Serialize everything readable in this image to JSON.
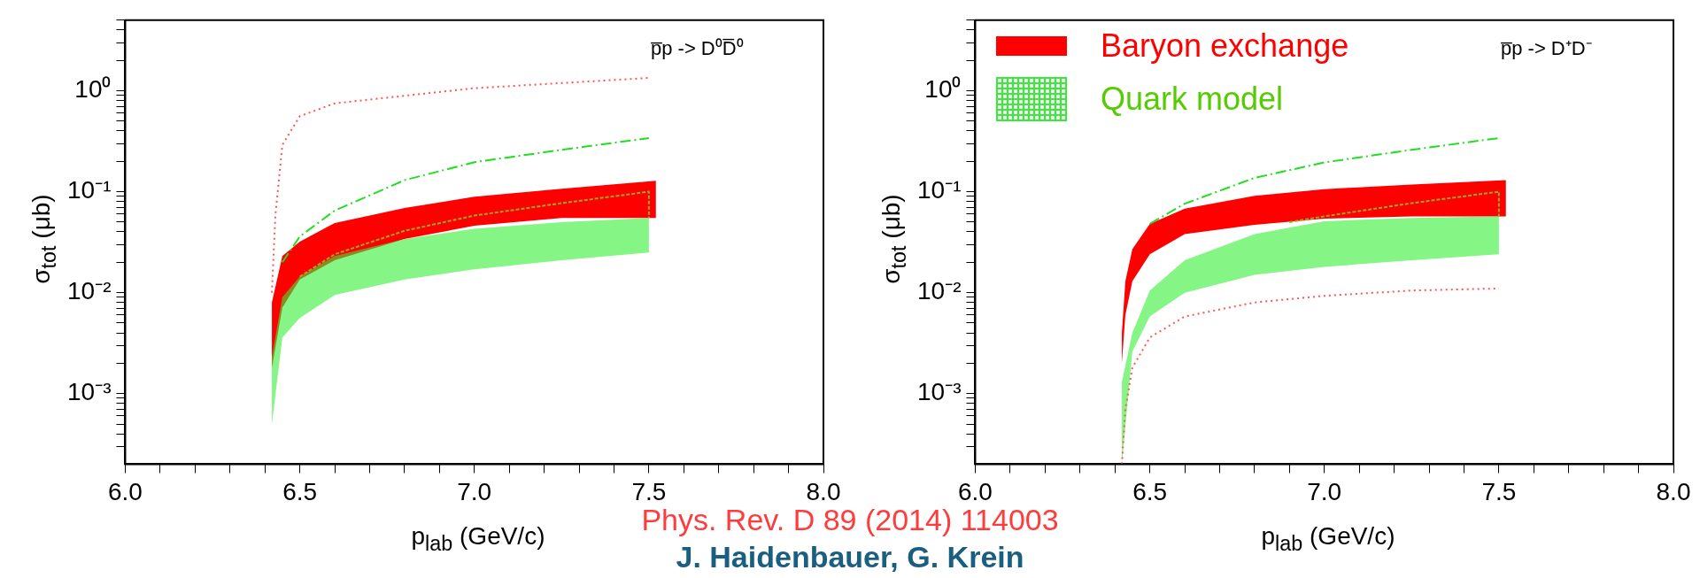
{
  "chart_data": [
    {
      "type": "line",
      "log": "y",
      "marker": "none",
      "grid": false,
      "legend": false,
      "xlabel": "p$_{lab}$ (GeV/c)",
      "ylabel": "σ$_{tot}$ (μb)",
      "xlim": [
        6,
        8
      ],
      "ylim": [
        0.0002,
        5
      ],
      "xticks": [
        {
          "value": 6,
          "label": "6.0"
        },
        {
          "value": 6.1,
          "label": null
        },
        {
          "value": 6.2,
          "label": null
        },
        {
          "value": 6.3,
          "label": null
        },
        {
          "value": 6.4,
          "label": null
        },
        {
          "value": 6.5,
          "label": "6.5"
        },
        {
          "value": 6.6,
          "label": null
        },
        {
          "value": 6.7,
          "label": null
        },
        {
          "value": 6.8,
          "label": null
        },
        {
          "value": 6.9,
          "label": null
        },
        {
          "value": 7,
          "label": "7.0"
        },
        {
          "value": 7.1,
          "label": null
        },
        {
          "value": 7.2,
          "label": null
        },
        {
          "value": 7.3,
          "label": null
        },
        {
          "value": 7.4,
          "label": null
        },
        {
          "value": 7.5,
          "label": "7.5"
        },
        {
          "value": 7.6,
          "label": null
        },
        {
          "value": 7.7,
          "label": null
        },
        {
          "value": 7.8,
          "label": null
        },
        {
          "value": 7.9,
          "label": null
        },
        {
          "value": 8,
          "label": "8.0"
        }
      ],
      "yticks": [
        {
          "value": 0.0003,
          "label": null
        },
        {
          "value": 0.0004,
          "label": null
        },
        {
          "value": 0.0005,
          "label": null
        },
        {
          "value": 0.0006,
          "label": null
        },
        {
          "value": 0.0007,
          "label": null
        },
        {
          "value": 0.0008,
          "label": null
        },
        {
          "value": 0.0009,
          "label": null
        },
        {
          "value": 0.001,
          "label": "10⁻³"
        },
        {
          "value": 0.002,
          "label": null
        },
        {
          "value": 0.003,
          "label": null
        },
        {
          "value": 0.004,
          "label": null
        },
        {
          "value": 0.005,
          "label": null
        },
        {
          "value": 0.006,
          "label": null
        },
        {
          "value": 0.007,
          "label": null
        },
        {
          "value": 0.008,
          "label": null
        },
        {
          "value": 0.009,
          "label": null
        },
        {
          "value": 0.01,
          "label": "10⁻²"
        },
        {
          "value": 0.02,
          "label": null
        },
        {
          "value": 0.03,
          "label": null
        },
        {
          "value": 0.04,
          "label": null
        },
        {
          "value": 0.05,
          "label": null
        },
        {
          "value": 0.06,
          "label": null
        },
        {
          "value": 0.07,
          "label": null
        },
        {
          "value": 0.08,
          "label": null
        },
        {
          "value": 0.09,
          "label": null
        },
        {
          "value": 0.1,
          "label": "10⁻¹"
        },
        {
          "value": 0.2,
          "label": null
        },
        {
          "value": 0.3,
          "label": null
        },
        {
          "value": 0.4,
          "label": null
        },
        {
          "value": 0.5,
          "label": null
        },
        {
          "value": 0.6,
          "label": null
        },
        {
          "value": 0.7,
          "label": null
        },
        {
          "value": 0.8,
          "label": null
        },
        {
          "value": 0.9,
          "label": null
        },
        {
          "value": 1,
          "label": "10⁰"
        },
        {
          "value": 2,
          "label": null
        },
        {
          "value": 3,
          "label": null
        },
        {
          "value": 4,
          "label": null
        },
        {
          "value": 5,
          "label": null
        }
      ],
      "annotations": [
        "p̅p -> D⁰D̅⁰",
        "Phys. Rev. D 89 (2014) 114003",
        "J. Haidenbauer, G. Krein"
      ],
      "series": [
        {
          "type": "area",
          "color": "#ff0000",
          "x": [
            6.42,
            6.45,
            6.5,
            6.6,
            6.8,
            7.0,
            7.25,
            7.52
          ],
          "lower": [
            0.0018,
            0.0071,
            0.0135,
            0.021,
            0.034,
            0.046,
            0.055,
            0.055
          ],
          "upper": [
            0.008,
            0.023,
            0.032,
            0.049,
            0.069,
            0.089,
            0.107,
            0.128
          ],
          "values": [
            null,
            null,
            null,
            null,
            null,
            null,
            null,
            null
          ]
        },
        {
          "type": "area",
          "color": "#33ee33",
          "x": [
            6.42,
            6.45,
            6.5,
            6.6,
            6.8,
            7.0,
            7.25,
            7.5
          ],
          "lower": [
            0.0005,
            0.0036,
            0.0056,
            0.0095,
            0.0135,
            0.017,
            0.021,
            0.025
          ],
          "upper": [
            0.0023,
            0.009,
            0.0144,
            0.023,
            0.034,
            0.043,
            0.05,
            0.055
          ],
          "values": [
            null,
            null,
            null,
            null,
            null,
            null,
            null,
            null
          ]
        },
        {
          "type": "line",
          "color": "#ff5555",
          "line_style": "dotted",
          "x": [
            6.42,
            6.43,
            6.45,
            6.5,
            6.6,
            7.0,
            7.5
          ],
          "values": [
            0.01,
            0.058,
            0.29,
            0.56,
            0.75,
            1.06,
            1.34
          ]
        },
        {
          "type": "line",
          "color": "#22dd22",
          "line_style": "dashdot",
          "x": [
            6.45,
            6.5,
            6.6,
            6.8,
            7.0,
            7.25,
            7.5
          ],
          "values": [
            0.02,
            0.036,
            0.065,
            0.13,
            0.196,
            0.26,
            0.34
          ]
        },
        {
          "type": "line",
          "color": "#99aa22",
          "line_style": "dashed",
          "x": [
            6.5,
            6.6,
            6.8,
            7.0,
            7.25,
            7.5,
            7.5
          ],
          "values": [
            0.0144,
            0.024,
            0.041,
            0.058,
            0.077,
            0.1,
            0.055
          ]
        }
      ]
    },
    {
      "type": "line",
      "log": "y",
      "marker": "none",
      "grid": false,
      "legend": "top left",
      "xlabel": "p$_{lab}$ (GeV/c)",
      "ylabel": "σ$_{tot}$ (μb)",
      "xlim": [
        6,
        8
      ],
      "ylim": [
        0.0002,
        5
      ],
      "xticks": [
        {
          "value": 6,
          "label": "6.0"
        },
        {
          "value": 6.1,
          "label": null
        },
        {
          "value": 6.2,
          "label": null
        },
        {
          "value": 6.3,
          "label": null
        },
        {
          "value": 6.4,
          "label": null
        },
        {
          "value": 6.5,
          "label": "6.5"
        },
        {
          "value": 6.6,
          "label": null
        },
        {
          "value": 6.7,
          "label": null
        },
        {
          "value": 6.8,
          "label": null
        },
        {
          "value": 6.9,
          "label": null
        },
        {
          "value": 7,
          "label": "7.0"
        },
        {
          "value": 7.1,
          "label": null
        },
        {
          "value": 7.2,
          "label": null
        },
        {
          "value": 7.3,
          "label": null
        },
        {
          "value": 7.4,
          "label": null
        },
        {
          "value": 7.5,
          "label": "7.5"
        },
        {
          "value": 7.6,
          "label": null
        },
        {
          "value": 7.7,
          "label": null
        },
        {
          "value": 7.8,
          "label": null
        },
        {
          "value": 7.9,
          "label": null
        },
        {
          "value": 8,
          "label": "8.0"
        }
      ],
      "yticks": [
        {
          "value": 0.0003,
          "label": null
        },
        {
          "value": 0.0004,
          "label": null
        },
        {
          "value": 0.0005,
          "label": null
        },
        {
          "value": 0.0006,
          "label": null
        },
        {
          "value": 0.0007,
          "label": null
        },
        {
          "value": 0.0008,
          "label": null
        },
        {
          "value": 0.0009,
          "label": null
        },
        {
          "value": 0.001,
          "label": "10⁻³"
        },
        {
          "value": 0.002,
          "label": null
        },
        {
          "value": 0.003,
          "label": null
        },
        {
          "value": 0.004,
          "label": null
        },
        {
          "value": 0.005,
          "label": null
        },
        {
          "value": 0.006,
          "label": null
        },
        {
          "value": 0.007,
          "label": null
        },
        {
          "value": 0.008,
          "label": null
        },
        {
          "value": 0.009,
          "label": null
        },
        {
          "value": 0.01,
          "label": "10⁻²"
        },
        {
          "value": 0.02,
          "label": null
        },
        {
          "value": 0.03,
          "label": null
        },
        {
          "value": 0.04,
          "label": null
        },
        {
          "value": 0.05,
          "label": null
        },
        {
          "value": 0.06,
          "label": null
        },
        {
          "value": 0.07,
          "label": null
        },
        {
          "value": 0.08,
          "label": null
        },
        {
          "value": 0.09,
          "label": null
        },
        {
          "value": 0.1,
          "label": "10⁻¹"
        },
        {
          "value": 0.2,
          "label": null
        },
        {
          "value": 0.3,
          "label": null
        },
        {
          "value": 0.4,
          "label": null
        },
        {
          "value": 0.5,
          "label": null
        },
        {
          "value": 0.6,
          "label": null
        },
        {
          "value": 0.7,
          "label": null
        },
        {
          "value": 0.8,
          "label": null
        },
        {
          "value": 0.9,
          "label": null
        },
        {
          "value": 1,
          "label": "10⁰"
        },
        {
          "value": 2,
          "label": null
        },
        {
          "value": 3,
          "label": null
        },
        {
          "value": 4,
          "label": null
        },
        {
          "value": 5,
          "label": null
        }
      ],
      "annotations": [
        "p̅p -> D⁺D⁻"
      ],
      "series": [
        {
          "name": "Baryon exchange",
          "type": "area",
          "color": "#ff0000",
          "x": [
            6.42,
            6.43,
            6.45,
            6.5,
            6.6,
            6.8,
            7.0,
            7.25,
            7.52
          ],
          "lower": [
            0.002,
            0.006,
            0.013,
            0.024,
            0.038,
            0.047,
            0.054,
            0.057,
            0.057
          ],
          "upper": [
            0.004,
            0.013,
            0.027,
            0.048,
            0.068,
            0.091,
            0.106,
            0.118,
            0.13
          ],
          "values": [
            null,
            null,
            null,
            null,
            null,
            null,
            null,
            null,
            null
          ]
        },
        {
          "name": "Quark model",
          "type": "area",
          "color": "#33ee33",
          "x": [
            6.42,
            6.45,
            6.5,
            6.6,
            6.8,
            7.0,
            7.25,
            7.5
          ],
          "lower": [
            0.0002,
            0.0026,
            0.0058,
            0.01,
            0.015,
            0.018,
            0.021,
            0.024
          ],
          "upper": [
            0.0013,
            0.004,
            0.0105,
            0.021,
            0.038,
            0.051,
            0.055,
            0.057
          ],
          "values": [
            null,
            null,
            null,
            null,
            null,
            null,
            null,
            null
          ]
        },
        {
          "type": "line",
          "color": "#ff5555",
          "line_style": "dotted",
          "x": [
            6.42,
            6.43,
            6.45,
            6.5,
            6.6,
            6.8,
            7.0,
            7.25,
            7.5
          ],
          "values": [
            0.0002,
            0.0007,
            0.0018,
            0.0036,
            0.0058,
            0.008,
            0.0093,
            0.0105,
            0.011
          ]
        },
        {
          "type": "line",
          "color": "#22dd22",
          "line_style": "dashdot",
          "x": [
            6.5,
            6.6,
            6.8,
            7.0,
            7.25,
            7.5
          ],
          "values": [
            0.048,
            0.076,
            0.137,
            0.195,
            0.26,
            0.34
          ]
        },
        {
          "type": "line",
          "color": "#99aa22",
          "line_style": "dashed",
          "x": [
            6.9,
            7.0,
            7.25,
            7.5,
            7.5
          ],
          "values": [
            0.05,
            0.057,
            0.077,
            0.1,
            0.057
          ]
        }
      ]
    }
  ]
}
